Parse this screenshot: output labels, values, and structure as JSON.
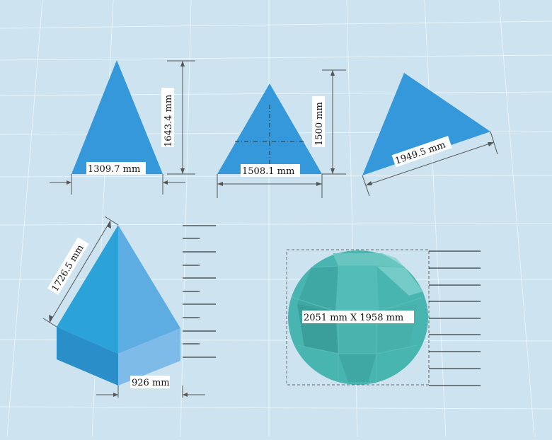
{
  "colors": {
    "background": "#cde4f0",
    "triangle": "#3498db",
    "prism_front": "#2d9fd6",
    "prism_right": "#5dade2",
    "prism_base_front": "#2a8fc8",
    "prism_base_right": "#7fbbe8",
    "sphere": "#48b5b0",
    "dimension_line": "#555555"
  },
  "shapes": [
    {
      "name": "triangle-1",
      "labels": {
        "width": "1309.7 mm",
        "height": "1643.4 mm"
      }
    },
    {
      "name": "triangle-2",
      "labels": {
        "width": "1508.1 mm",
        "height": "1500 mm"
      }
    },
    {
      "name": "triangle-3",
      "labels": {
        "side": "1949.5 mm"
      }
    },
    {
      "name": "pyramid-prism",
      "labels": {
        "edge": "1726.5 mm",
        "width": "926 mm"
      }
    },
    {
      "name": "sphere",
      "labels": {
        "bbox": "2051 mm X 1958 mm"
      }
    }
  ]
}
